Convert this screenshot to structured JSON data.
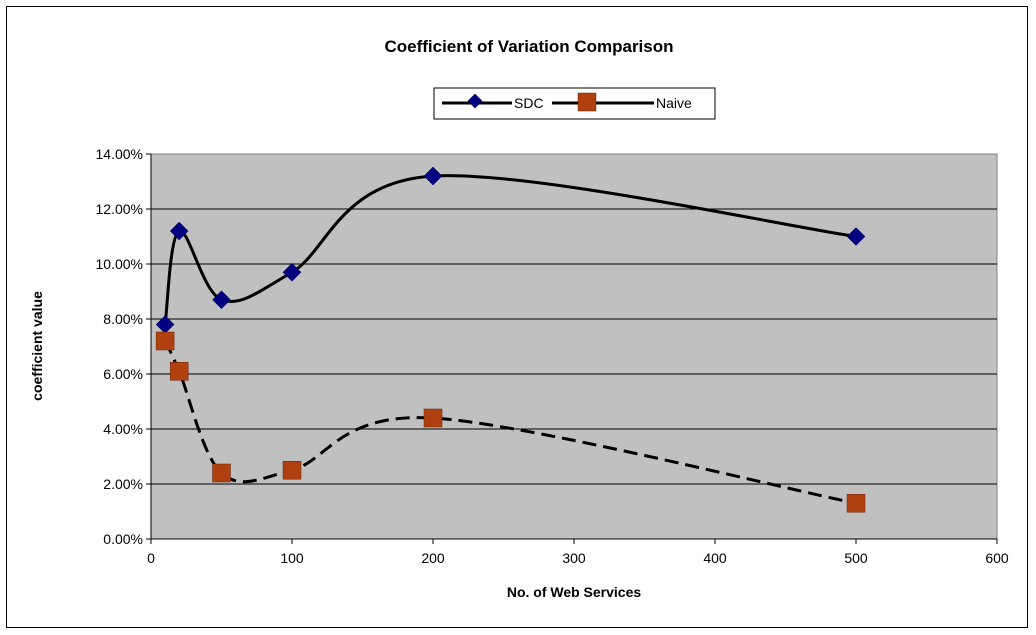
{
  "chart_data": {
    "type": "scatter",
    "title": "Coefficient of Variation Comparison",
    "xlabel": "No. of Web Services",
    "ylabel": "coefficient value",
    "xlim": [
      0,
      600
    ],
    "ylim": [
      0,
      0.14
    ],
    "x_ticks": [
      "0",
      "100",
      "200",
      "300",
      "400",
      "500",
      "600"
    ],
    "y_ticks": [
      "0.00%",
      "2.00%",
      "4.00%",
      "6.00%",
      "8.00%",
      "10.00%",
      "12.00%",
      "14.00%"
    ],
    "grid": true,
    "legend_position": "top",
    "plot_background": "#c0c0c0",
    "series": [
      {
        "name": "SDC",
        "marker": "diamond",
        "line_style": "solid",
        "smooth": true,
        "color": "#000080",
        "x": [
          10,
          20,
          50,
          100,
          200,
          500
        ],
        "y": [
          0.078,
          0.112,
          0.087,
          0.097,
          0.132,
          0.11
        ]
      },
      {
        "name": "Naive",
        "marker": "square",
        "line_style": "dashed",
        "smooth": true,
        "color": "#b04010",
        "x": [
          10,
          20,
          50,
          100,
          200,
          500
        ],
        "y": [
          0.072,
          0.061,
          0.024,
          0.025,
          0.044,
          0.013
        ]
      }
    ]
  }
}
